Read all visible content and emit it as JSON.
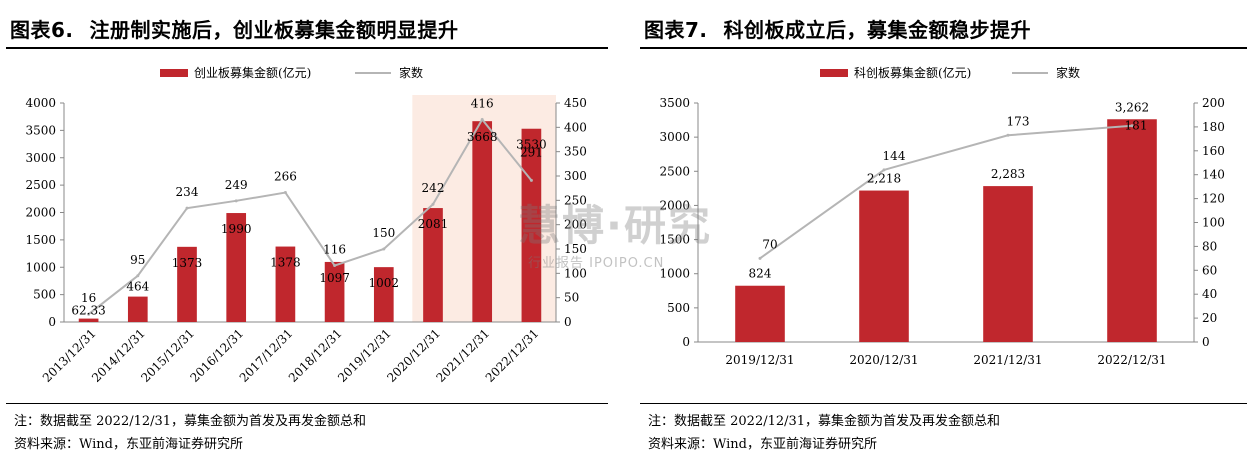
{
  "panels": [
    {
      "title_num": "图表6.",
      "title_text": "注册制实施后，创业板募集金额明显提升",
      "note": "注：数据截至 2022/12/31，募集金额为首发及再发金额总和",
      "source": "资料来源：Wind，东亚前海证券研究所"
    },
    {
      "title_num": "图表7.",
      "title_text": "科创板成立后，募集金额稳步提升",
      "note": "注：数据截至 2022/12/31，募集金额为首发及再发金额总和",
      "source": "资料来源：Wind，东亚前海证券研究所"
    }
  ],
  "watermark": {
    "main": "慧博·研究",
    "sub": "行业报告 IPOIPO.CN"
  },
  "colors": {
    "bar": "#c0272d",
    "line": "#b5b5b5",
    "highlight": "#fcebe3"
  },
  "chart_data": [
    {
      "type": "bar",
      "categories": [
        "2013/12/31",
        "2014/12/31",
        "2015/12/31",
        "2016/12/31",
        "2017/12/31",
        "2018/12/31",
        "2019/12/31",
        "2020/12/31",
        "2021/12/31",
        "2022/12/31"
      ],
      "series": [
        {
          "name": "创业板募集金额(亿元)",
          "type": "bar",
          "axis": "left",
          "values": [
            62.33,
            464,
            1373,
            1990,
            1378,
            1097,
            1002,
            2081,
            3668,
            3530
          ],
          "labels": [
            "62.33",
            "464",
            "1373",
            "1990",
            "1378",
            "1097",
            "1002",
            "2081",
            "3668",
            "3530"
          ]
        },
        {
          "name": "家数",
          "type": "line",
          "axis": "right",
          "values": [
            16,
            95,
            234,
            249,
            266,
            116,
            150,
            242,
            416,
            291
          ],
          "labels": [
            "16",
            "95",
            "234",
            "249",
            "266",
            "116",
            "150",
            "242",
            "416",
            "291"
          ]
        }
      ],
      "ylim_left": [
        0,
        4000
      ],
      "yticks_left": [
        0,
        500,
        1000,
        1500,
        2000,
        2500,
        3000,
        3500,
        4000
      ],
      "ylim_right": [
        0,
        450
      ],
      "yticks_right": [
        0,
        50,
        100,
        150,
        200,
        250,
        300,
        350,
        400,
        450
      ],
      "highlight_categories": [
        "2020/12/31",
        "2021/12/31",
        "2022/12/31"
      ],
      "legend": "top-center"
    },
    {
      "type": "bar",
      "categories": [
        "2019/12/31",
        "2020/12/31",
        "2021/12/31",
        "2022/12/31"
      ],
      "series": [
        {
          "name": "科创板募集金额(亿元)",
          "type": "bar",
          "axis": "left",
          "values": [
            824,
            2218,
            2283,
            3262
          ],
          "labels": [
            "824",
            "2,218",
            "2,283",
            "3,262"
          ]
        },
        {
          "name": "家数",
          "type": "line",
          "axis": "right",
          "values": [
            70,
            144,
            173,
            181
          ],
          "labels": [
            "70",
            "144",
            "173",
            "181"
          ]
        }
      ],
      "ylim_left": [
        0,
        3500
      ],
      "yticks_left": [
        0,
        500,
        1000,
        1500,
        2000,
        2500,
        3000,
        3500
      ],
      "ylim_right": [
        0,
        200
      ],
      "yticks_right": [
        0,
        20,
        40,
        60,
        80,
        100,
        120,
        140,
        160,
        180,
        200
      ],
      "legend": "top-center"
    }
  ]
}
